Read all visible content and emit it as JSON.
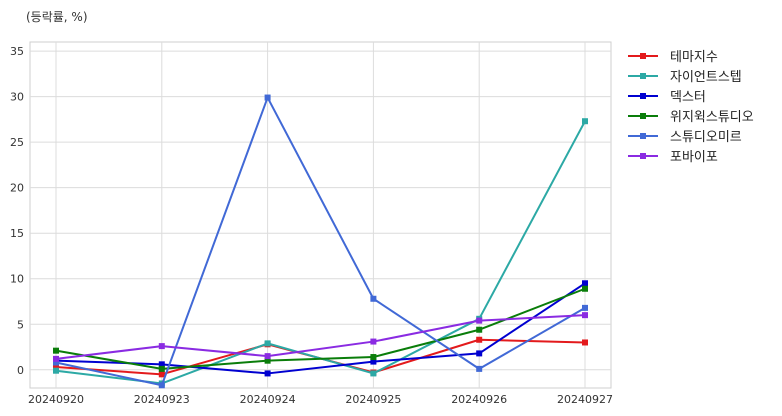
{
  "unit_label": "(등락률, %)",
  "chart_data": {
    "type": "line",
    "title": "",
    "xlabel": "",
    "ylabel": "",
    "x": [
      "20240920",
      "20240923",
      "20240924",
      "20240925",
      "20240926",
      "20240927"
    ],
    "ylim": [
      -2,
      36
    ],
    "yticks": [
      0,
      5,
      10,
      15,
      20,
      25,
      30,
      35
    ],
    "grid": true,
    "legend_position": "right",
    "series": [
      {
        "name": "테마지수",
        "color": "#e31a1c",
        "values": [
          0.3,
          -0.5,
          2.8,
          -0.3,
          3.3,
          3.0
        ]
      },
      {
        "name": "자이언트스텝",
        "color": "#2ca9a5",
        "values": [
          -0.1,
          -1.5,
          2.9,
          -0.4,
          5.6,
          27.3
        ]
      },
      {
        "name": "덱스터",
        "color": "#0000d0",
        "values": [
          1.0,
          0.6,
          -0.4,
          0.9,
          1.8,
          9.5
        ]
      },
      {
        "name": "위지윅스튜디오",
        "color": "#0a7d0a",
        "values": [
          2.1,
          0.1,
          1.0,
          1.4,
          4.4,
          8.9
        ]
      },
      {
        "name": "스튜디오미르",
        "color": "#4169d6",
        "values": [
          0.8,
          -1.7,
          29.9,
          7.8,
          0.1,
          6.8
        ]
      },
      {
        "name": "포바이포",
        "color": "#8a2be2",
        "values": [
          1.2,
          2.6,
          1.5,
          3.1,
          5.4,
          6.0
        ]
      }
    ]
  }
}
